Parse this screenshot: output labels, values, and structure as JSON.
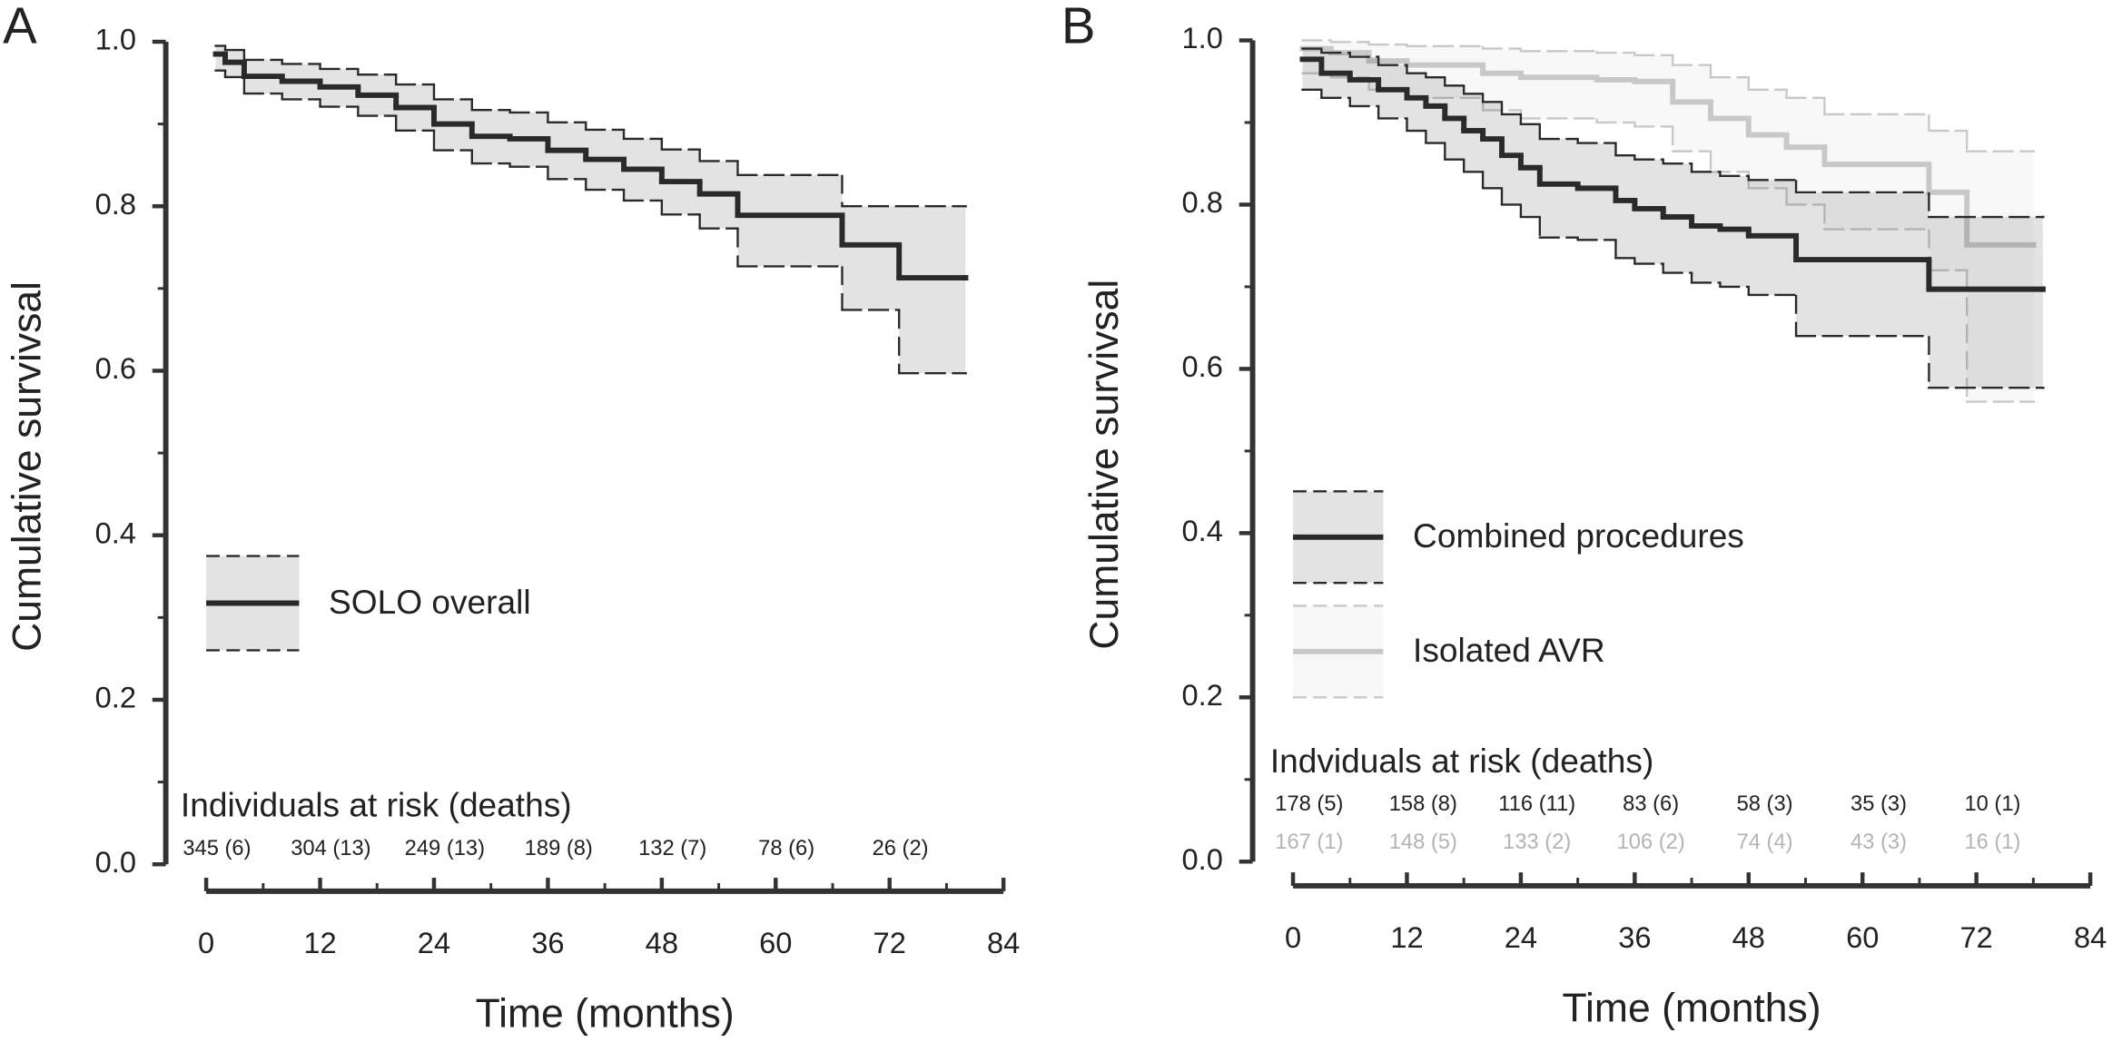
{
  "chart_data": [
    {
      "type": "step",
      "panel": "A",
      "xlabel": "Time (months)",
      "ylabel": "Cumulative survivsal",
      "xlim": [
        0,
        84
      ],
      "xticks": [
        0,
        12,
        24,
        36,
        48,
        60,
        72,
        84
      ],
      "ylim": [
        0,
        1
      ],
      "yticks": [
        {
          "value": 0,
          "label": "0.0"
        },
        0.2,
        0.4,
        0.6,
        0.8,
        {
          "value": 1,
          "label": "1.0"
        }
      ],
      "series": [
        {
          "name": "SOLO overall",
          "color": "#2a2a2a",
          "x": [
            1,
            2,
            4,
            8,
            12,
            16,
            20,
            24,
            28,
            32,
            36,
            40,
            44,
            48,
            52,
            56,
            67,
            73,
            80
          ],
          "values": [
            0.985,
            0.975,
            0.958,
            0.952,
            0.945,
            0.935,
            0.92,
            0.9,
            0.885,
            0.882,
            0.868,
            0.857,
            0.845,
            0.83,
            0.815,
            0.789,
            0.753,
            0.713,
            0.713
          ],
          "upper": [
            0.995,
            0.99,
            0.978,
            0.973,
            0.967,
            0.96,
            0.948,
            0.93,
            0.917,
            0.914,
            0.902,
            0.893,
            0.882,
            0.869,
            0.855,
            0.838,
            0.8,
            0.8,
            0.8
          ],
          "lower": [
            0.965,
            0.957,
            0.937,
            0.93,
            0.921,
            0.91,
            0.892,
            0.868,
            0.852,
            0.848,
            0.833,
            0.82,
            0.807,
            0.79,
            0.773,
            0.727,
            0.674,
            0.597,
            0.597
          ]
        }
      ],
      "risk_table": {
        "title": "Individuals at risk (deaths)",
        "rows": [
          {
            "color": "#222222",
            "labels": [
              "345 (6)",
              "304 (13)",
              "249 (13)",
              "189 (8)",
              "132 (7)",
              "78 (6)",
              "26 (2)"
            ]
          }
        ]
      }
    },
    {
      "type": "step",
      "panel": "B",
      "xlabel": "Time (months)",
      "ylabel": "Cumulative survivsal",
      "xlim": [
        0,
        84
      ],
      "xticks": [
        0,
        12,
        24,
        36,
        48,
        60,
        72,
        84
      ],
      "ylim": [
        0,
        1
      ],
      "yticks": [
        {
          "value": 0,
          "label": "0.0"
        },
        0.2,
        0.4,
        0.6,
        0.8,
        {
          "value": 1,
          "label": "1.0"
        }
      ],
      "series": [
        {
          "name": "Combined procedures",
          "color": "#2a2a2a",
          "x": [
            1,
            3,
            6,
            9,
            12,
            14,
            16,
            18,
            20,
            22,
            24,
            26,
            30,
            34,
            36,
            39,
            42,
            45,
            48,
            53,
            67,
            79
          ],
          "values": [
            0.977,
            0.96,
            0.952,
            0.94,
            0.93,
            0.92,
            0.905,
            0.89,
            0.88,
            0.86,
            0.845,
            0.825,
            0.82,
            0.805,
            0.795,
            0.785,
            0.774,
            0.77,
            0.762,
            0.733,
            0.697,
            0.697
          ],
          "upper": [
            0.99,
            0.985,
            0.98,
            0.97,
            0.96,
            0.955,
            0.945,
            0.935,
            0.925,
            0.91,
            0.898,
            0.88,
            0.875,
            0.86,
            0.855,
            0.85,
            0.84,
            0.835,
            0.83,
            0.815,
            0.785,
            0.785
          ],
          "lower": [
            0.94,
            0.93,
            0.92,
            0.905,
            0.89,
            0.875,
            0.855,
            0.84,
            0.82,
            0.8,
            0.785,
            0.76,
            0.757,
            0.735,
            0.728,
            0.717,
            0.705,
            0.7,
            0.69,
            0.64,
            0.577,
            0.577
          ]
        },
        {
          "name": "Isolated AVR",
          "color": "#c8c8c8",
          "x": [
            1,
            4,
            8,
            12,
            20,
            24,
            32,
            36,
            40,
            44,
            48,
            52,
            56,
            67,
            71,
            78
          ],
          "values": [
            0.99,
            0.985,
            0.975,
            0.97,
            0.96,
            0.955,
            0.952,
            0.95,
            0.925,
            0.905,
            0.885,
            0.87,
            0.849,
            0.815,
            0.751,
            0.751
          ],
          "upper": [
            1,
            0.998,
            0.995,
            0.993,
            0.99,
            0.987,
            0.985,
            0.982,
            0.97,
            0.955,
            0.94,
            0.93,
            0.91,
            0.89,
            0.865,
            0.865
          ],
          "lower": [
            0.96,
            0.955,
            0.94,
            0.93,
            0.915,
            0.905,
            0.9,
            0.895,
            0.865,
            0.84,
            0.82,
            0.8,
            0.77,
            0.72,
            0.56,
            0.56
          ]
        }
      ],
      "risk_table": {
        "title": "Indviduals at risk (deaths)",
        "rows": [
          {
            "color": "#222222",
            "labels": [
              "178 (5)",
              "158 (8)",
              "116 (11)",
              "83 (6)",
              "58 (3)",
              "35 (3)",
              "10 (1)"
            ]
          },
          {
            "color": "#b4b4b4",
            "labels": [
              "167 (1)",
              "148 (5)",
              "133 (2)",
              "106 (2)",
              "74 (4)",
              "43 (3)",
              "16 (1)"
            ]
          }
        ]
      }
    }
  ]
}
